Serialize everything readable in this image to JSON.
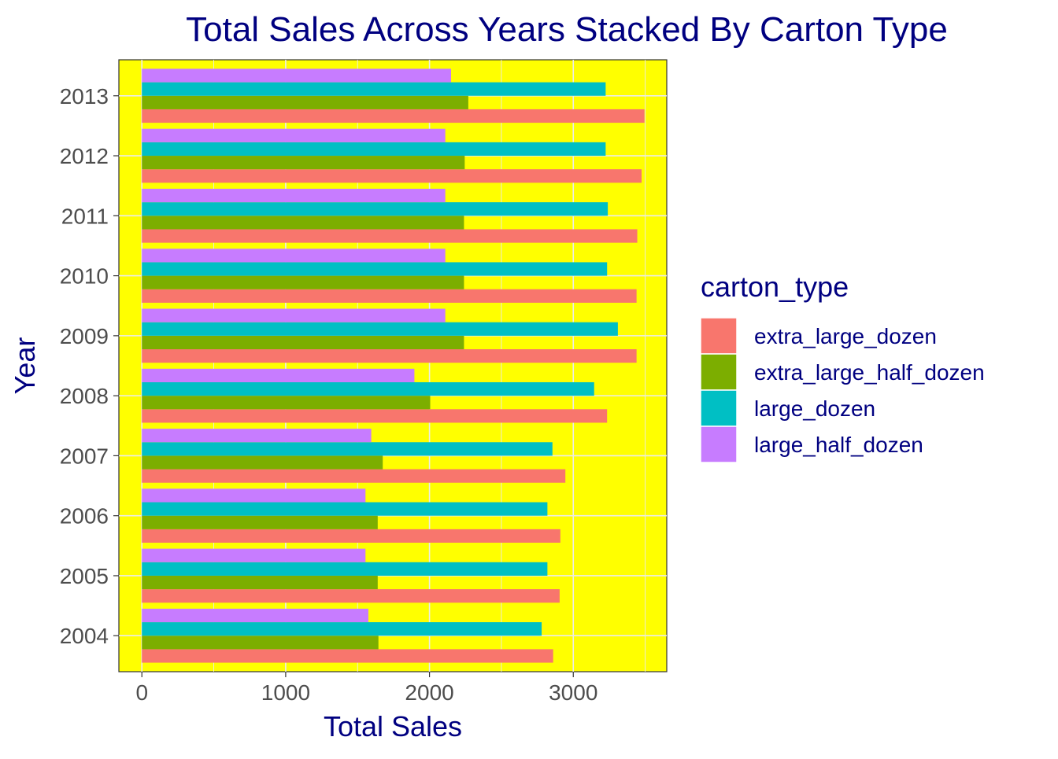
{
  "chart_data": {
    "type": "bar",
    "orientation": "horizontal",
    "layout": "grouped",
    "title": "Total Sales Across Years Stacked By Carton Type",
    "xlabel": "Total Sales",
    "ylabel": "Year",
    "xlim": [
      -160,
      3650
    ],
    "x_ticks": [
      0,
      1000,
      2000,
      3000
    ],
    "grid": true,
    "legend_position": "right",
    "legend_title": "carton_type",
    "panel_background": "#ffff00",
    "title_color": "#000080",
    "categories": [
      "2004",
      "2005",
      "2006",
      "2007",
      "2008",
      "2009",
      "2010",
      "2011",
      "2012",
      "2013"
    ],
    "series": [
      {
        "name": "extra_large_dozen",
        "color": "#f8766d",
        "values": [
          2860,
          2905,
          2910,
          2945,
          3235,
          3440,
          3440,
          3445,
          3475,
          3495
        ]
      },
      {
        "name": "extra_large_half_dozen",
        "color": "#7cae00",
        "values": [
          1645,
          1640,
          1640,
          1675,
          2005,
          2240,
          2240,
          2240,
          2245,
          2270
        ]
      },
      {
        "name": "large_dozen",
        "color": "#00bfc4",
        "values": [
          2780,
          2820,
          2820,
          2855,
          3145,
          3310,
          3235,
          3240,
          3225,
          3225
        ]
      },
      {
        "name": "large_half_dozen",
        "color": "#c77cff",
        "values": [
          1575,
          1555,
          1555,
          1595,
          1895,
          2110,
          2110,
          2110,
          2110,
          2150
        ]
      }
    ]
  }
}
